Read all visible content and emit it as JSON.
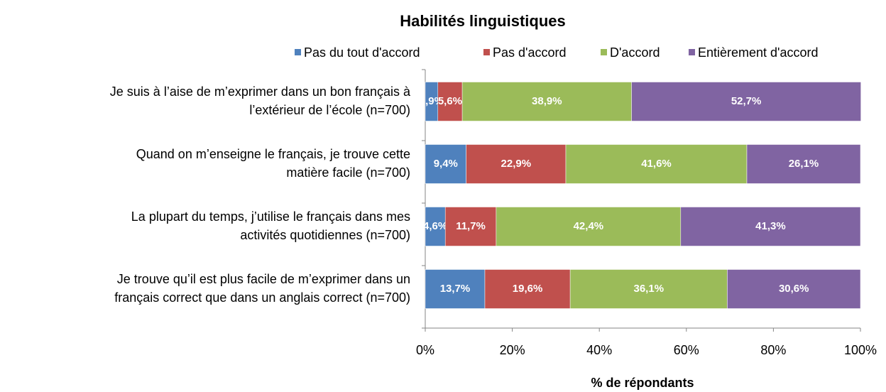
{
  "chart_data": {
    "type": "stacked-barh",
    "title": "Habilités linguistiques",
    "xlabel": "% de répondants",
    "categories": [
      [
        "Je suis à l’aise de m’exprimer dans un bon français à",
        "l’extérieur de l’école (n=700)"
      ],
      [
        "Quand on m’enseigne le français, je trouve cette",
        "matière facile (n=700)"
      ],
      [
        "La plupart du temps, j’utilise le français dans mes",
        "activités quotidiennes (n=700)"
      ],
      [
        "Je trouve qu’il est plus facile de m’exprimer dans un",
        "français correct que dans un anglais correct (n=700)"
      ]
    ],
    "series": [
      {
        "name": "Pas du tout d'accord",
        "color": "#4f81bd",
        "values": [
          2.9,
          9.4,
          4.6,
          13.7
        ],
        "value_labels": [
          "2,9%",
          "9,4%",
          "4,6%",
          "13,7%"
        ]
      },
      {
        "name": "Pas d'accord",
        "color": "#c0504d",
        "values": [
          5.6,
          22.9,
          11.7,
          19.6
        ],
        "value_labels": [
          "5,6%",
          "22,9%",
          "11,7%",
          "19,6%"
        ]
      },
      {
        "name": "D'accord",
        "color": "#9bbb59",
        "values": [
          38.9,
          41.6,
          42.4,
          36.1
        ],
        "value_labels": [
          "38,9%",
          "41,6%",
          "42,4%",
          "36,1%"
        ]
      },
      {
        "name": "Entièrement d'accord",
        "color": "#8064a2",
        "values": [
          52.7,
          26.1,
          41.3,
          30.6
        ],
        "value_labels": [
          "52,7%",
          "26,1%",
          "41,3%",
          "30,6%"
        ]
      }
    ],
    "xlim": [
      0,
      100
    ],
    "xticks": [
      {
        "value": 0,
        "label": "0%"
      },
      {
        "value": 20,
        "label": "20%"
      },
      {
        "value": 40,
        "label": "40%"
      },
      {
        "value": 60,
        "label": "60%"
      },
      {
        "value": 80,
        "label": "80%"
      },
      {
        "value": 100,
        "label": "100%"
      }
    ],
    "legend": "top"
  }
}
